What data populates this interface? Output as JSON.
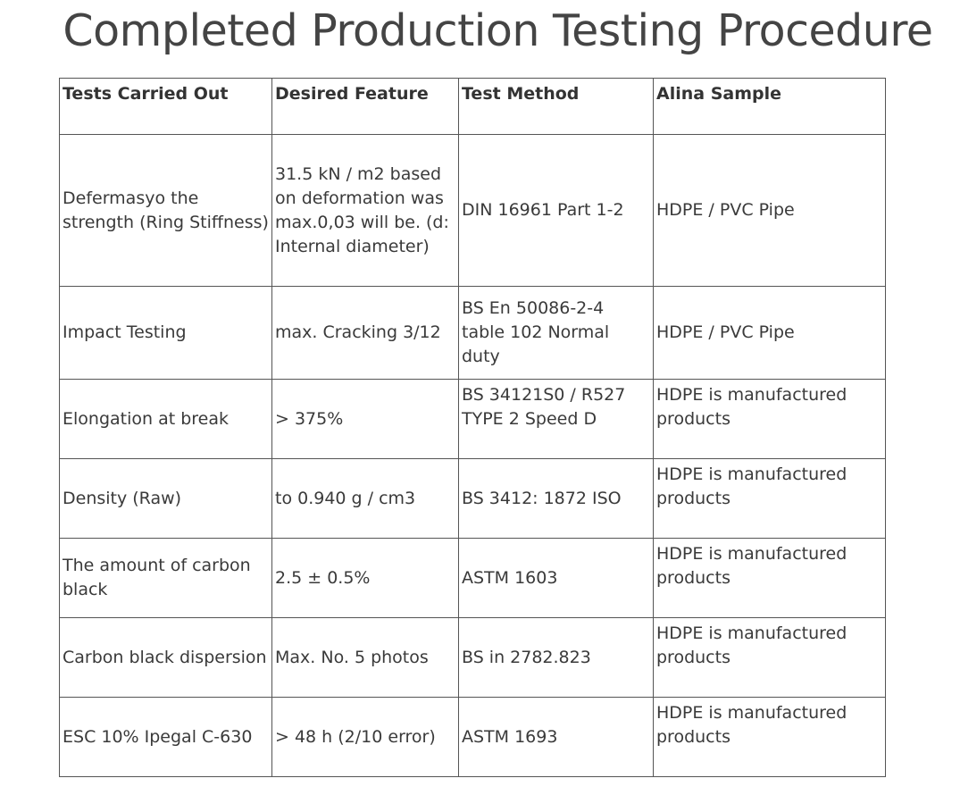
{
  "title": "Completed Production Testing Procedure",
  "table": {
    "headers": [
      "Tests Carried Out",
      "Desired Feature",
      "Test Method",
      "Alina Sample"
    ],
    "rows": [
      [
        "Defermasyo the strength (Ring Stiffness)",
        "31.5 kN / m2 based on deformation was max.0,03 will be. (d: Internal diameter)",
        "DIN 16961 Part 1-2",
        "HDPE / PVC Pipe"
      ],
      [
        "Impact Testing",
        "max. Cracking 3/12",
        "BS En 50086-2-4 table 102 Normal duty",
        "HDPE / PVC Pipe"
      ],
      [
        "Elongation at break",
        "> 375%",
        "BS 34121S0 / R527 TYPE 2 Speed D",
        "HDPE is manufactured products"
      ],
      [
        "Density (Raw)",
        "to 0.940 g / cm3",
        "BS 3412: 1872 ISO",
        "HDPE is manufactured products"
      ],
      [
        "The amount of carbon black",
        "2.5 ± 0.5%",
        "ASTM 1603",
        "HDPE is manufactured products"
      ],
      [
        "Carbon black dispersion",
        "Max. No. 5 photos",
        "BS in 2782.823",
        "HDPE is manufactured products"
      ],
      [
        "ESC 10% Ipegal C-630",
        "> 48 h (2/10 error)",
        "ASTM 1693",
        "HDPE is manufactured products"
      ]
    ]
  }
}
